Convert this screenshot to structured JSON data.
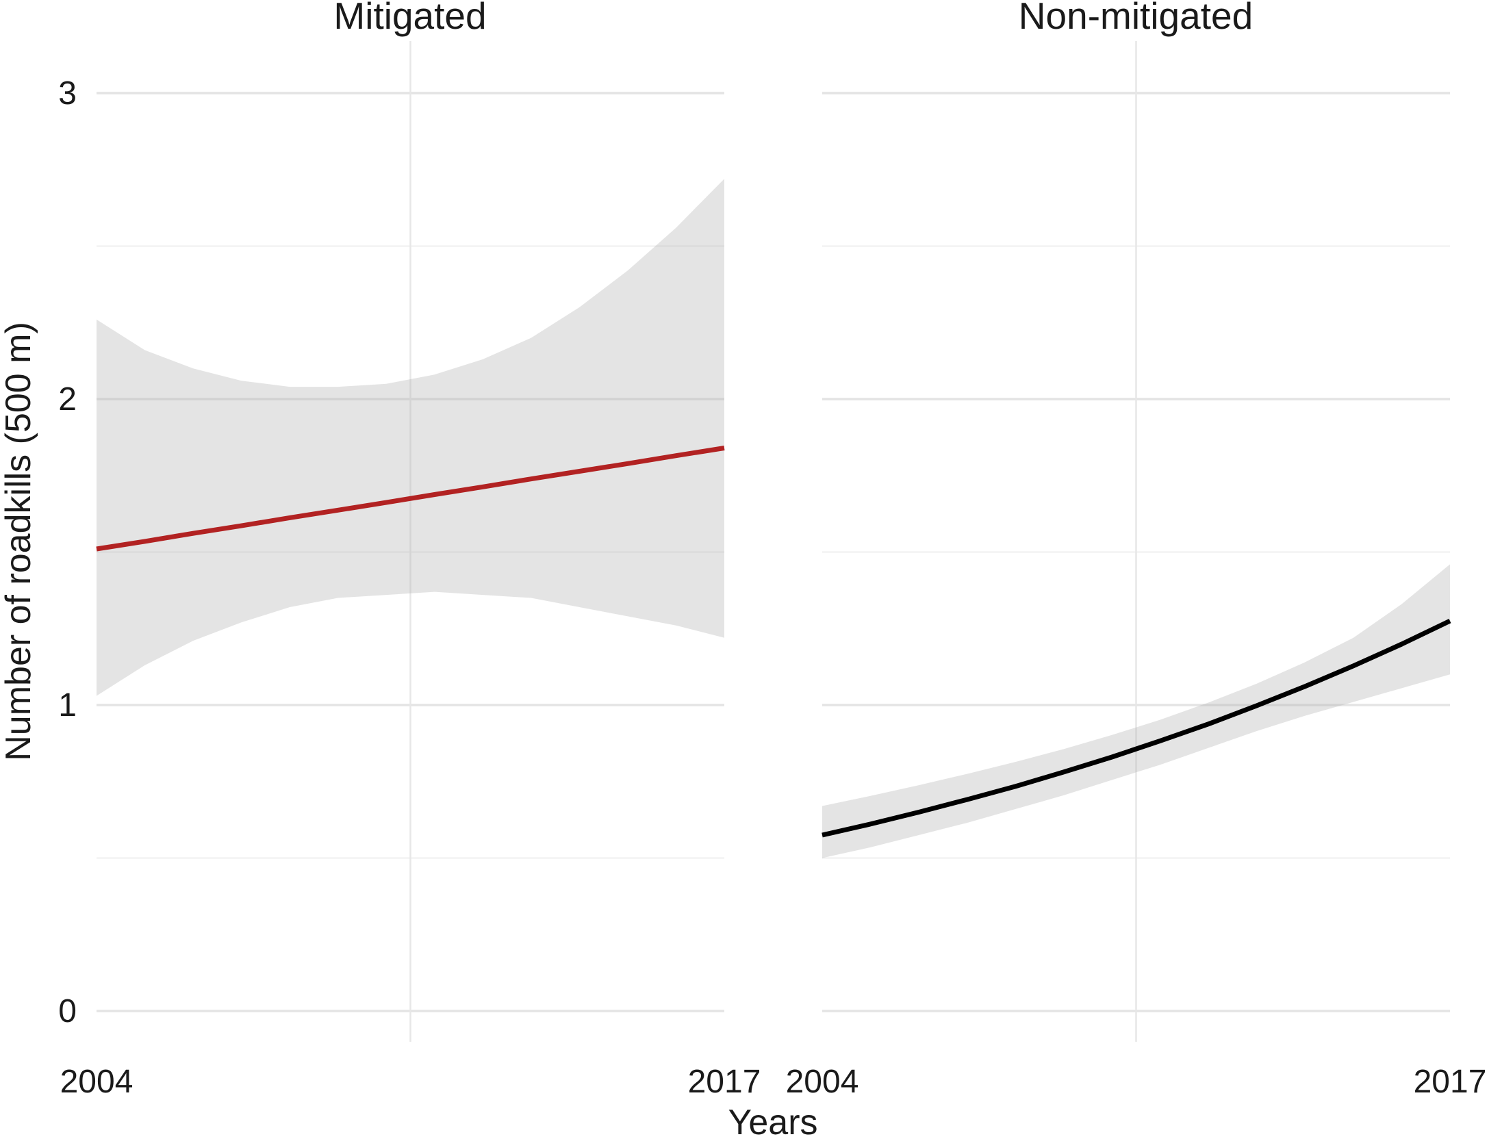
{
  "figure": {
    "y_axis_title": "Number of roadkills (500 m)",
    "x_axis_title": "Years",
    "colors": {
      "mitigated_line": "#B22222",
      "non_mitigated_line": "#000000",
      "ribbon_fill": "rgba(178,178,178,0.35)",
      "grid_major": "#E4E4E4",
      "grid_minor": "#EFEFEF",
      "grid_vertical": "#E7E7E7",
      "text": "#1A1A1A",
      "background": "#FFFFFF"
    }
  },
  "axes": {
    "y": {
      "ticks": [
        {
          "label": "0",
          "value": 0
        },
        {
          "label": "1",
          "value": 1
        },
        {
          "label": "2",
          "value": 2
        },
        {
          "label": "3",
          "value": 3
        }
      ],
      "minor_ticks": [
        0.5,
        1.5,
        2.5
      ],
      "range": [
        -0.1,
        3.17
      ]
    },
    "x": {
      "tick_labels": [
        "2004",
        "2017"
      ],
      "tick_values": [
        2004,
        2017
      ],
      "range": [
        2004,
        2017
      ],
      "center_gridline_year": 2010.5
    }
  },
  "chart_data": [
    {
      "type": "line",
      "panel": "facet-left",
      "title": "Mitigated",
      "x": [
        2004,
        2005,
        2006,
        2007,
        2008,
        2009,
        2010,
        2011,
        2012,
        2013,
        2014,
        2015,
        2016,
        2017
      ],
      "series": [
        {
          "name": "fitted_roadkills",
          "values": [
            1.51,
            1.535,
            1.561,
            1.586,
            1.612,
            1.637,
            1.662,
            1.688,
            1.713,
            1.739,
            1.764,
            1.789,
            1.815,
            1.84
          ]
        }
      ],
      "ci_upper": [
        2.26,
        2.16,
        2.1,
        2.06,
        2.04,
        2.04,
        2.05,
        2.08,
        2.13,
        2.2,
        2.3,
        2.42,
        2.56,
        2.72
      ],
      "ci_lower": [
        1.03,
        1.13,
        1.21,
        1.27,
        1.32,
        1.35,
        1.36,
        1.37,
        1.36,
        1.35,
        1.32,
        1.29,
        1.26,
        1.22
      ],
      "line_color": "#B22222"
    },
    {
      "type": "line",
      "panel": "facet-right",
      "title": "Non-mitigated",
      "x": [
        2004,
        2005,
        2006,
        2007,
        2008,
        2009,
        2010,
        2011,
        2012,
        2013,
        2014,
        2015,
        2016,
        2017
      ],
      "series": [
        {
          "name": "fitted_roadkills",
          "values": [
            0.575,
            0.611,
            0.65,
            0.691,
            0.734,
            0.781,
            0.83,
            0.883,
            0.938,
            0.998,
            1.061,
            1.128,
            1.199,
            1.275
          ]
        }
      ],
      "ci_upper": [
        0.67,
        0.703,
        0.738,
        0.775,
        0.814,
        0.856,
        0.902,
        0.952,
        1.008,
        1.07,
        1.14,
        1.22,
        1.33,
        1.46
      ],
      "ci_lower": [
        0.5,
        0.535,
        0.575,
        0.615,
        0.66,
        0.705,
        0.755,
        0.805,
        0.86,
        0.915,
        0.965,
        1.01,
        1.055,
        1.1
      ],
      "line_color": "#000000"
    }
  ]
}
